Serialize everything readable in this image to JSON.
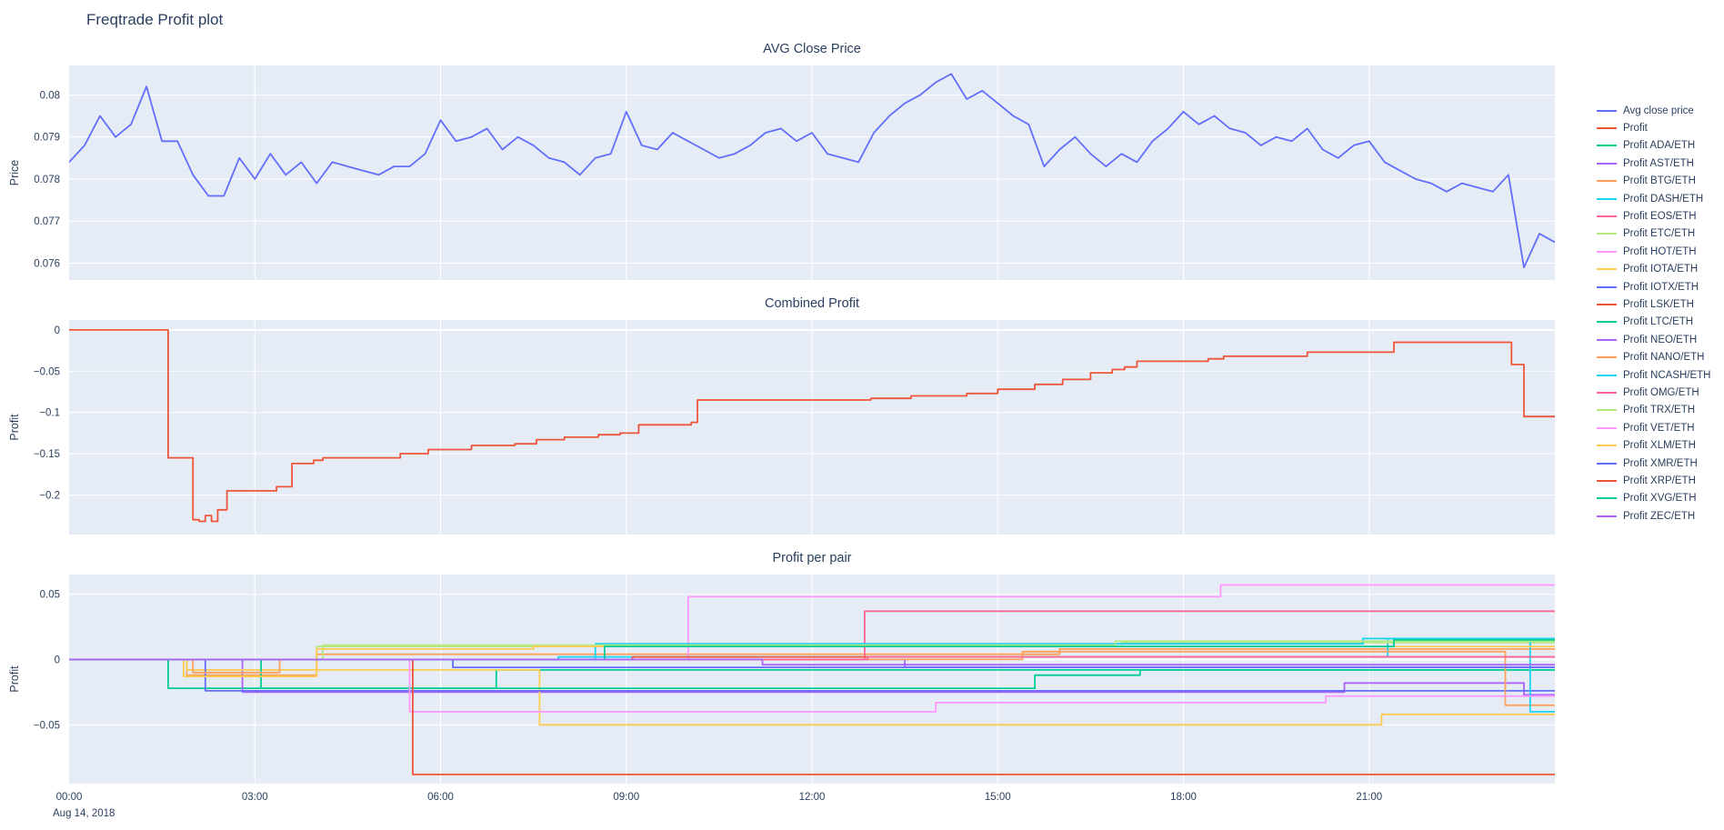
{
  "page": {
    "title": "Freqtrade Profit plot",
    "font_color": "#2a3f5f",
    "plot_bg": "#e5ecf6",
    "grid_color": "#ffffff",
    "bg": "#ffffff"
  },
  "x_axis": {
    "range": [
      0,
      24
    ],
    "tick_hours": [
      0,
      3,
      6,
      9,
      12,
      15,
      18,
      21
    ],
    "tick_labels": [
      "00:00",
      "03:00",
      "06:00",
      "09:00",
      "12:00",
      "15:00",
      "18:00",
      "21:00"
    ],
    "date_label": "Aug 14, 2018"
  },
  "legend": {
    "items": [
      {
        "label": "Avg close price",
        "color": "#636efa"
      },
      {
        "label": "Profit",
        "color": "#ef553b"
      },
      {
        "label": "Profit ADA/ETH",
        "color": "#00cc96"
      },
      {
        "label": "Profit AST/ETH",
        "color": "#ab63fa"
      },
      {
        "label": "Profit BTG/ETH",
        "color": "#ffa15a"
      },
      {
        "label": "Profit DASH/ETH",
        "color": "#19d3f3"
      },
      {
        "label": "Profit EOS/ETH",
        "color": "#ff6692"
      },
      {
        "label": "Profit ETC/ETH",
        "color": "#b6e880"
      },
      {
        "label": "Profit HOT/ETH",
        "color": "#ff97ff"
      },
      {
        "label": "Profit IOTA/ETH",
        "color": "#fecb52"
      },
      {
        "label": "Profit IOTX/ETH",
        "color": "#636efa"
      },
      {
        "label": "Profit LSK/ETH",
        "color": "#ef553b"
      },
      {
        "label": "Profit LTC/ETH",
        "color": "#00cc96"
      },
      {
        "label": "Profit NEO/ETH",
        "color": "#ab63fa"
      },
      {
        "label": "Profit NANO/ETH",
        "color": "#ffa15a"
      },
      {
        "label": "Profit NCASH/ETH",
        "color": "#19d3f3"
      },
      {
        "label": "Profit OMG/ETH",
        "color": "#ff6692"
      },
      {
        "label": "Profit TRX/ETH",
        "color": "#b6e880"
      },
      {
        "label": "Profit VET/ETH",
        "color": "#ff97ff"
      },
      {
        "label": "Profit XLM/ETH",
        "color": "#fecb52"
      },
      {
        "label": "Profit XMR/ETH",
        "color": "#636efa"
      },
      {
        "label": "Profit XRP/ETH",
        "color": "#ef553b"
      },
      {
        "label": "Profit XVG/ETH",
        "color": "#00cc96"
      },
      {
        "label": "Profit ZEC/ETH",
        "color": "#ab63fa"
      }
    ]
  },
  "chart_data": [
    {
      "type": "line",
      "title": "AVG Close Price",
      "ylabel": "Price",
      "ylim": [
        0.0756,
        0.0807
      ],
      "yticks": [
        {
          "v": 0.08,
          "label": "0.08"
        },
        {
          "v": 0.079,
          "label": "0.079"
        },
        {
          "v": 0.078,
          "label": "0.078"
        },
        {
          "v": 0.077,
          "label": "0.077"
        },
        {
          "v": 0.076,
          "label": "0.076"
        }
      ],
      "series": [
        {
          "name": "Avg close price",
          "color": "#636efa",
          "step": false,
          "x0": 0,
          "dx": 0.25,
          "y": [
            0.0784,
            0.0788,
            0.0795,
            0.079,
            0.0793,
            0.0802,
            0.0789,
            0.0789,
            0.0781,
            0.0776,
            0.0776,
            0.0785,
            0.078,
            0.0786,
            0.0781,
            0.0784,
            0.0779,
            0.0784,
            0.0783,
            0.0782,
            0.0781,
            0.0783,
            0.0783,
            0.0786,
            0.0794,
            0.0789,
            0.079,
            0.0792,
            0.0787,
            0.079,
            0.0788,
            0.0785,
            0.0784,
            0.0781,
            0.0785,
            0.0786,
            0.0796,
            0.0788,
            0.0787,
            0.0791,
            0.0789,
            0.0787,
            0.0785,
            0.0786,
            0.0788,
            0.0791,
            0.0792,
            0.0789,
            0.0791,
            0.0786,
            0.0785,
            0.0784,
            0.0791,
            0.0795,
            0.0798,
            0.08,
            0.0803,
            0.0805,
            0.0799,
            0.0801,
            0.0798,
            0.0795,
            0.0793,
            0.0783,
            0.0787,
            0.079,
            0.0786,
            0.0783,
            0.0786,
            0.0784,
            0.0789,
            0.0792,
            0.0796,
            0.0793,
            0.0795,
            0.0792,
            0.0791,
            0.0788,
            0.079,
            0.0789,
            0.0792,
            0.0787,
            0.0785,
            0.0788,
            0.0789,
            0.0784,
            0.0782,
            0.078,
            0.0779,
            0.0777,
            0.0779,
            0.0778,
            0.0777,
            0.0781,
            0.0759,
            0.0767,
            0.0765
          ]
        }
      ]
    },
    {
      "type": "line",
      "title": "Combined Profit",
      "ylabel": "Profit",
      "ylim": [
        -0.248,
        0.012
      ],
      "yticks": [
        {
          "v": 0,
          "label": "0"
        },
        {
          "v": -0.05,
          "label": "−0.05"
        },
        {
          "v": -0.1,
          "label": "−0.1"
        },
        {
          "v": -0.15,
          "label": "−0.15"
        },
        {
          "v": -0.2,
          "label": "−0.2"
        }
      ],
      "series": [
        {
          "name": "Profit",
          "color": "#ef553b",
          "step": true,
          "points": [
            [
              0,
              0
            ],
            [
              1.55,
              0
            ],
            [
              1.6,
              -0.155
            ],
            [
              1.95,
              -0.155
            ],
            [
              2.0,
              -0.23
            ],
            [
              2.1,
              -0.232
            ],
            [
              2.2,
              -0.225
            ],
            [
              2.3,
              -0.232
            ],
            [
              2.4,
              -0.218
            ],
            [
              2.55,
              -0.195
            ],
            [
              3.3,
              -0.195
            ],
            [
              3.35,
              -0.19
            ],
            [
              3.55,
              -0.19
            ],
            [
              3.6,
              -0.162
            ],
            [
              3.95,
              -0.158
            ],
            [
              4.1,
              -0.155
            ],
            [
              5.35,
              -0.15
            ],
            [
              5.8,
              -0.145
            ],
            [
              6.5,
              -0.14
            ],
            [
              7.2,
              -0.138
            ],
            [
              7.55,
              -0.133
            ],
            [
              8.0,
              -0.13
            ],
            [
              8.55,
              -0.127
            ],
            [
              8.9,
              -0.125
            ],
            [
              9.2,
              -0.115
            ],
            [
              10.05,
              -0.112
            ],
            [
              10.15,
              -0.085
            ],
            [
              12.95,
              -0.083
            ],
            [
              13.6,
              -0.08
            ],
            [
              14.5,
              -0.077
            ],
            [
              15.0,
              -0.072
            ],
            [
              15.6,
              -0.066
            ],
            [
              16.05,
              -0.06
            ],
            [
              16.5,
              -0.052
            ],
            [
              16.85,
              -0.048
            ],
            [
              17.05,
              -0.045
            ],
            [
              17.25,
              -0.038
            ],
            [
              18.4,
              -0.035
            ],
            [
              18.65,
              -0.032
            ],
            [
              20.0,
              -0.027
            ],
            [
              21.4,
              -0.015
            ],
            [
              23.25,
              -0.015
            ],
            [
              23.3,
              -0.042
            ],
            [
              23.5,
              -0.105
            ],
            [
              24,
              -0.105
            ]
          ]
        }
      ]
    },
    {
      "type": "line",
      "title": "Profit per pair",
      "ylabel": "Profit",
      "ylim": [
        -0.095,
        0.065
      ],
      "yticks": [
        {
          "v": 0.05,
          "label": "0.05"
        },
        {
          "v": 0,
          "label": "0"
        },
        {
          "v": -0.05,
          "label": "−0.05"
        }
      ],
      "series": [
        {
          "name": "Profit ADA/ETH",
          "color": "#00cc96",
          "step": true,
          "points": [
            [
              0,
              0
            ],
            [
              1.6,
              -0.022
            ],
            [
              6.9,
              -0.008
            ],
            [
              24,
              -0.008
            ]
          ]
        },
        {
          "name": "Profit AST/ETH",
          "color": "#ab63fa",
          "step": true,
          "points": [
            [
              0,
              0
            ],
            [
              2.8,
              -0.025
            ],
            [
              20.6,
              -0.018
            ],
            [
              23.5,
              -0.027
            ],
            [
              24,
              -0.027
            ]
          ]
        },
        {
          "name": "Profit BTG/ETH",
          "color": "#ffa15a",
          "step": true,
          "points": [
            [
              0,
              0
            ],
            [
              1.9,
              -0.012
            ],
            [
              4.0,
              0.004
            ],
            [
              16.0,
              0.008
            ],
            [
              24,
              0.008
            ]
          ]
        },
        {
          "name": "Profit DASH/ETH",
          "color": "#19d3f3",
          "step": true,
          "points": [
            [
              0,
              0
            ],
            [
              7.9,
              0.002
            ],
            [
              21.3,
              0.016
            ],
            [
              24,
              0.016
            ]
          ]
        },
        {
          "name": "Profit EOS/ETH",
          "color": "#ff6692",
          "step": true,
          "points": [
            [
              0,
              0
            ],
            [
              12.85,
              0.037
            ],
            [
              24,
              0.037
            ]
          ]
        },
        {
          "name": "Profit ETC/ETH",
          "color": "#b6e880",
          "step": true,
          "points": [
            [
              0,
              0
            ],
            [
              4.0,
              0.01
            ],
            [
              17.0,
              0.013
            ],
            [
              24,
              0.013
            ]
          ]
        },
        {
          "name": "Profit HOT/ETH",
          "color": "#ff97ff",
          "step": true,
          "points": [
            [
              0,
              0
            ],
            [
              10.0,
              0.048
            ],
            [
              18.6,
              0.057
            ],
            [
              24,
              0.057
            ]
          ]
        },
        {
          "name": "Profit IOTA/ETH",
          "color": "#fecb52",
          "step": true,
          "points": [
            [
              0,
              0
            ],
            [
              1.9,
              -0.008
            ],
            [
              7.6,
              -0.05
            ],
            [
              21.2,
              -0.042
            ],
            [
              24,
              -0.042
            ]
          ]
        },
        {
          "name": "Profit IOTX/ETH",
          "color": "#636efa",
          "step": true,
          "points": [
            [
              0,
              0
            ],
            [
              2.2,
              -0.024
            ],
            [
              24,
              -0.024
            ]
          ]
        },
        {
          "name": "Profit LSK/ETH",
          "color": "#ef553b",
          "step": true,
          "points": [
            [
              0,
              0
            ],
            [
              9.1,
              0.002
            ],
            [
              24,
              0.002
            ]
          ]
        },
        {
          "name": "Profit LTC/ETH",
          "color": "#00cc96",
          "step": true,
          "points": [
            [
              0,
              0
            ],
            [
              3.1,
              -0.022
            ],
            [
              15.6,
              -0.012
            ],
            [
              17.3,
              -0.008
            ],
            [
              24,
              -0.008
            ]
          ]
        },
        {
          "name": "Profit NEO/ETH",
          "color": "#ab63fa",
          "step": true,
          "points": [
            [
              0,
              0
            ],
            [
              13.5,
              -0.006
            ],
            [
              24,
              -0.006
            ]
          ]
        },
        {
          "name": "Profit NANO/ETH",
          "color": "#ffa15a",
          "step": true,
          "points": [
            [
              0,
              0
            ],
            [
              2.0,
              -0.01
            ],
            [
              3.4,
              0
            ],
            [
              15.4,
              0.006
            ],
            [
              23.2,
              -0.035
            ],
            [
              24,
              -0.035
            ]
          ]
        },
        {
          "name": "Profit NCASH/ETH",
          "color": "#19d3f3",
          "step": true,
          "points": [
            [
              0,
              0
            ],
            [
              8.5,
              0.012
            ],
            [
              20.9,
              0.016
            ],
            [
              23.6,
              -0.04
            ],
            [
              24,
              -0.04
            ]
          ]
        },
        {
          "name": "Profit OMG/ETH",
          "color": "#ff6692",
          "step": true,
          "points": [
            [
              0,
              0
            ],
            [
              12.9,
              0.002
            ],
            [
              24,
              0.002
            ]
          ]
        },
        {
          "name": "Profit TRX/ETH",
          "color": "#b6e880",
          "step": true,
          "points": [
            [
              0,
              0
            ],
            [
              4.1,
              0.011
            ],
            [
              16.9,
              0.014
            ],
            [
              24,
              0.014
            ]
          ]
        },
        {
          "name": "Profit VET/ETH",
          "color": "#ff97ff",
          "step": true,
          "points": [
            [
              0,
              0
            ],
            [
              5.5,
              -0.04
            ],
            [
              14.0,
              -0.033
            ],
            [
              20.3,
              -0.028
            ],
            [
              24,
              -0.028
            ]
          ]
        },
        {
          "name": "Profit XLM/ETH",
          "color": "#fecb52",
          "step": true,
          "points": [
            [
              0,
              0
            ],
            [
              1.85,
              -0.013
            ],
            [
              4.0,
              0.008
            ],
            [
              7.5,
              0.01
            ],
            [
              24,
              0.01
            ]
          ]
        },
        {
          "name": "Profit XMR/ETH",
          "color": "#636efa",
          "step": true,
          "points": [
            [
              0,
              0
            ],
            [
              6.2,
              -0.006
            ],
            [
              24,
              -0.006
            ]
          ]
        },
        {
          "name": "Profit XRP/ETH",
          "color": "#ef553b",
          "step": true,
          "points": [
            [
              0,
              0
            ],
            [
              5.55,
              -0.088
            ],
            [
              24,
              -0.088
            ]
          ]
        },
        {
          "name": "Profit XVG/ETH",
          "color": "#00cc96",
          "step": true,
          "points": [
            [
              0,
              0
            ],
            [
              8.65,
              0.01
            ],
            [
              21.4,
              0.015
            ],
            [
              24,
              0.015
            ]
          ]
        },
        {
          "name": "Profit ZEC/ETH",
          "color": "#ab63fa",
          "step": true,
          "points": [
            [
              0,
              0
            ],
            [
              11.2,
              -0.004
            ],
            [
              24,
              -0.004
            ]
          ]
        }
      ]
    }
  ]
}
